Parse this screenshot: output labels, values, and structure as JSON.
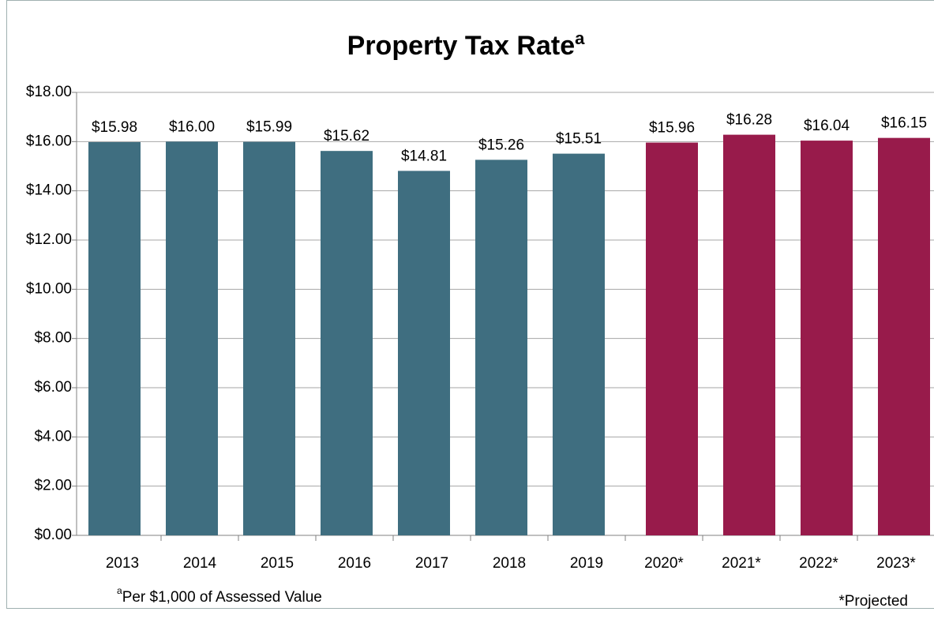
{
  "chart_data": {
    "type": "bar",
    "title": "Property Tax Rate",
    "title_superscript": "a",
    "categories": [
      "2013",
      "2014",
      "2015",
      "2016",
      "2017",
      "2018",
      "2019",
      "2020*",
      "2021*",
      "2022*",
      "2023*"
    ],
    "series": [
      {
        "color": "#3f6e80",
        "values": [
          15.98,
          16.0,
          15.99,
          15.62,
          14.81,
          15.26,
          15.51,
          null,
          null,
          null,
          null
        ],
        "value_labels": [
          "$15.98",
          "$16.00",
          "$15.99",
          "$15.62",
          "$14.81",
          "$15.26",
          "$15.51",
          null,
          null,
          null,
          null
        ]
      },
      {
        "color": "#981b4b",
        "values": [
          null,
          null,
          null,
          null,
          null,
          null,
          null,
          15.96,
          16.28,
          16.04,
          16.15
        ],
        "value_labels": [
          null,
          null,
          null,
          null,
          null,
          null,
          null,
          "$15.96",
          "$16.28",
          "$16.04",
          "$16.15"
        ]
      }
    ],
    "ylim": [
      0,
      18
    ],
    "yticks": [
      {
        "value": 0,
        "label": "$0.00"
      },
      {
        "value": 2,
        "label": "$2.00"
      },
      {
        "value": 4,
        "label": "$4.00"
      },
      {
        "value": 6,
        "label": "$6.00"
      },
      {
        "value": 8,
        "label": "$8.00"
      },
      {
        "value": 10,
        "label": "$10.00"
      },
      {
        "value": 12,
        "label": "$12.00"
      },
      {
        "value": 14,
        "label": "$14.00"
      },
      {
        "value": 16,
        "label": "$16.00"
      },
      {
        "value": 18,
        "label": "$18.00"
      }
    ],
    "grid": true,
    "footnote_superscript": "a",
    "footnote": "Per $1,000 of Assessed Value",
    "annotation": "*Projected"
  }
}
